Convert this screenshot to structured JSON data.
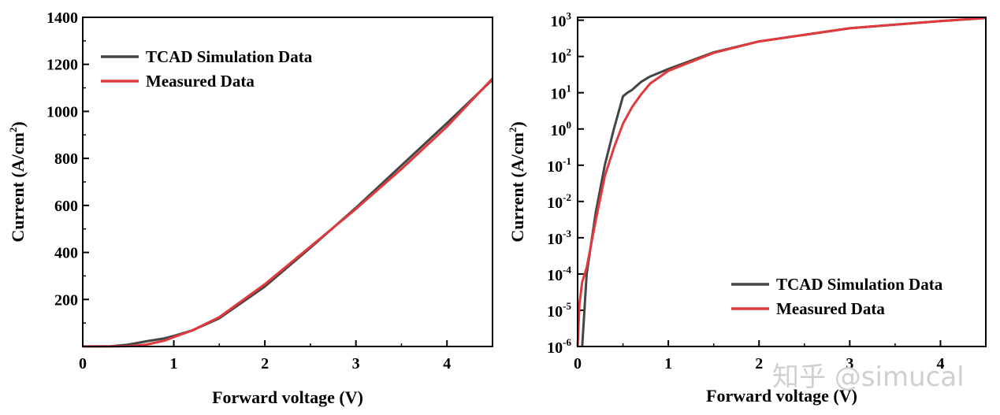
{
  "colors": {
    "sim": "#454545",
    "meas": "#e03a3c",
    "axis": "#000000",
    "watermark": "#cfcfcf"
  },
  "watermark": "知乎 @simucal",
  "chart_data": [
    {
      "type": "line",
      "xlabel": "Forward voltage (V)",
      "ylabel_main": "Current (A/cm",
      "ylabel_sup": "2",
      "ylabel_close": ")",
      "xlim": [
        0,
        4.5
      ],
      "ylim": [
        0,
        1400
      ],
      "yscale": "linear",
      "xticks": [
        0,
        1,
        2,
        3,
        4
      ],
      "xtick_labels": [
        "0",
        "1",
        "2",
        "3",
        "4"
      ],
      "yticks": [
        200,
        400,
        600,
        800,
        1000,
        1200,
        1400
      ],
      "ytick_labels": [
        "200",
        "400",
        "600",
        "800",
        "1000",
        "1200",
        "1400"
      ],
      "legend_position": "top-left",
      "series": [
        {
          "name": "TCAD Simulation Data",
          "x": [
            0,
            0.3,
            0.5,
            0.7,
            0.9,
            1.0,
            1.2,
            1.5,
            2.0,
            2.5,
            3.0,
            3.5,
            4.0,
            4.5
          ],
          "y": [
            0,
            0.5,
            8,
            22,
            35,
            45,
            68,
            120,
            255,
            420,
            590,
            770,
            950,
            1135
          ]
        },
        {
          "name": "Measured Data",
          "x": [
            0,
            0.3,
            0.5,
            0.7,
            0.9,
            1.0,
            1.2,
            1.5,
            2.0,
            2.5,
            3.0,
            3.5,
            4.0,
            4.5
          ],
          "y": [
            0,
            0.2,
            1.5,
            8,
            25,
            40,
            68,
            125,
            265,
            425,
            585,
            755,
            935,
            1140
          ]
        }
      ]
    },
    {
      "type": "line",
      "xlabel": "Forward voltage (V)",
      "ylabel_main": "Current (A/cm",
      "ylabel_sup": "2",
      "ylabel_close": ")",
      "xlim": [
        0,
        4.5
      ],
      "ylim": [
        1e-06,
        1200
      ],
      "yscale": "log",
      "xticks": [
        0,
        1,
        2,
        3,
        4
      ],
      "xtick_labels": [
        "0",
        "1",
        "2",
        "3",
        "4"
      ],
      "ytick_exponents": [
        -6,
        -5,
        -4,
        -3,
        -2,
        -1,
        0,
        1,
        2,
        3
      ],
      "ytick_base": "10",
      "legend_position": "bottom-right",
      "series": [
        {
          "name": "TCAD Simulation Data",
          "x": [
            0.05,
            0.1,
            0.2,
            0.3,
            0.4,
            0.5,
            0.55,
            0.6,
            0.7,
            0.8,
            1.0,
            1.5,
            2.0,
            3.0,
            4.0,
            4.5
          ],
          "y": [
            1e-06,
            0.0001,
            0.005,
            0.1,
            1.0,
            8,
            10,
            12,
            20,
            28,
            45,
            130,
            260,
            600,
            950,
            1150
          ]
        },
        {
          "name": "Measured Data",
          "x": [
            0.0,
            0.02,
            0.05,
            0.1,
            0.2,
            0.3,
            0.4,
            0.5,
            0.6,
            0.7,
            0.8,
            1.0,
            1.5,
            2.0,
            3.0,
            4.0,
            4.5
          ],
          "y": [
            1e-06,
            1.5e-05,
            6e-05,
            0.00015,
            0.003,
            0.05,
            0.3,
            1.4,
            4,
            9,
            18,
            40,
            125,
            260,
            600,
            950,
            1150
          ]
        }
      ]
    }
  ]
}
